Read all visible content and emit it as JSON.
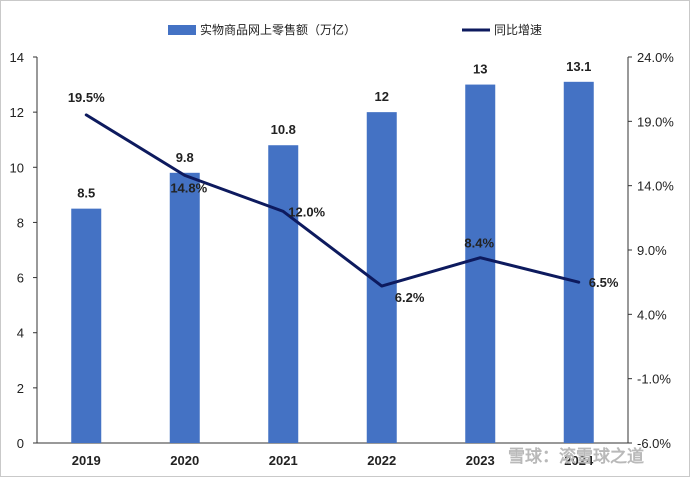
{
  "chart_data": {
    "type": "bar+line",
    "categories": [
      "2019",
      "2020",
      "2021",
      "2022",
      "2023",
      "2024"
    ],
    "series": [
      {
        "name": "实物商品网上零售额（万亿）",
        "type": "bar",
        "axis": "left",
        "values": [
          8.5,
          9.8,
          10.8,
          12,
          13,
          13.1
        ],
        "labels": [
          "8.5",
          "9.8",
          "10.8",
          "12",
          "13",
          "13.1"
        ]
      },
      {
        "name": "同比增速",
        "type": "line",
        "axis": "right",
        "values": [
          19.5,
          14.8,
          12.0,
          6.2,
          8.4,
          6.5
        ],
        "labels": [
          "19.5%",
          "14.8%",
          "12.0%",
          "6.2%",
          "8.4%",
          "6.5%"
        ]
      }
    ],
    "y_left": {
      "min": 0,
      "max": 14,
      "step": 2,
      "ticks": [
        "0",
        "2",
        "4",
        "6",
        "8",
        "10",
        "12",
        "14"
      ]
    },
    "y_right": {
      "min": -6,
      "max": 24,
      "step": 5,
      "ticks": [
        "-6.0%",
        "-1.0%",
        "4.0%",
        "9.0%",
        "14.0%",
        "19.0%",
        "24.0%"
      ]
    },
    "grid": false,
    "legend_position": "top",
    "colors": {
      "bar": "#4472c4",
      "line": "#0d1a5e"
    }
  },
  "watermark": {
    "text": "雪球：滚雪球之道"
  }
}
